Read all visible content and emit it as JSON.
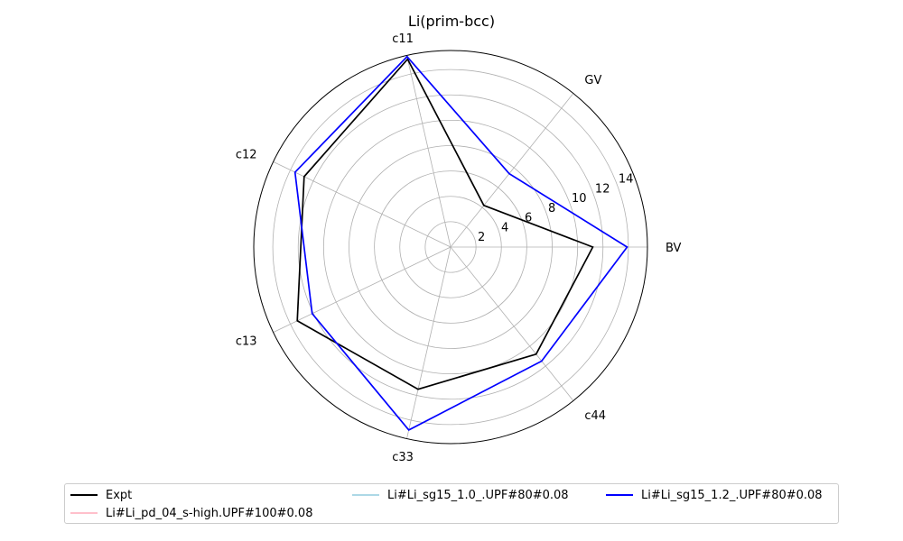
{
  "chart_data": {
    "type": "radar",
    "title": "Li(prim-bcc)",
    "axes": [
      "BV",
      "GV",
      "c11",
      "c12",
      "c13",
      "c33",
      "c44"
    ],
    "rlim": [
      0,
      15.5
    ],
    "r_ticks": [
      2,
      4,
      6,
      8,
      10,
      12,
      14
    ],
    "grid": true,
    "legend_placement": "bottom",
    "series": [
      {
        "name": "Expt",
        "color": "#000000",
        "values": [
          11.2,
          4.2,
          15.2,
          12.8,
          13.4,
          11.5,
          10.8
        ]
      },
      {
        "name": "Li#Li_pd_04_s-high.UPF#100#0.08",
        "color": "#ffc0cb",
        "values": []
      },
      {
        "name": "Li#Li_sg15_1.0_.UPF#80#0.08",
        "color": "#add8e6",
        "values": []
      },
      {
        "name": "Li#Li_sg15_1.2_.UPF#80#0.08",
        "color": "#0000ff",
        "values": [
          13.9,
          7.4,
          15.4,
          13.6,
          12.1,
          14.8,
          11.5
        ]
      }
    ]
  }
}
